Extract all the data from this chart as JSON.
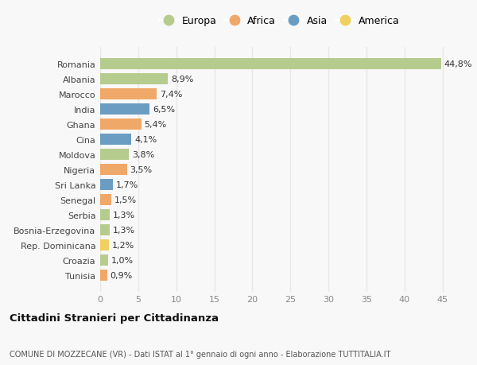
{
  "categories": [
    "Romania",
    "Albania",
    "Marocco",
    "India",
    "Ghana",
    "Cina",
    "Moldova",
    "Nigeria",
    "Sri Lanka",
    "Senegal",
    "Serbia",
    "Bosnia-Erzegovina",
    "Rep. Dominicana",
    "Croazia",
    "Tunisia"
  ],
  "values": [
    44.8,
    8.9,
    7.4,
    6.5,
    5.4,
    4.1,
    3.8,
    3.5,
    1.7,
    1.5,
    1.3,
    1.3,
    1.2,
    1.0,
    0.9
  ],
  "labels": [
    "44,8%",
    "8,9%",
    "7,4%",
    "6,5%",
    "5,4%",
    "4,1%",
    "3,8%",
    "3,5%",
    "1,7%",
    "1,5%",
    "1,3%",
    "1,3%",
    "1,2%",
    "1,0%",
    "0,9%"
  ],
  "continents": [
    "Europa",
    "Europa",
    "Africa",
    "Asia",
    "Africa",
    "Asia",
    "Europa",
    "Africa",
    "Asia",
    "Africa",
    "Europa",
    "Europa",
    "America",
    "Europa",
    "Africa"
  ],
  "continent_colors": {
    "Europa": "#b5cc8e",
    "Africa": "#f0a868",
    "Asia": "#6b9dc2",
    "America": "#f0d060"
  },
  "legend_order": [
    "Europa",
    "Africa",
    "Asia",
    "America"
  ],
  "title": "Cittadini Stranieri per Cittadinanza",
  "subtitle": "COMUNE DI MOZZECANE (VR) - Dati ISTAT al 1° gennaio di ogni anno - Elaborazione TUTTITALIA.IT",
  "xlim": [
    0,
    47
  ],
  "xticks": [
    0,
    5,
    10,
    15,
    20,
    25,
    30,
    35,
    40,
    45
  ],
  "background_color": "#f8f8f8",
  "grid_color": "#e8e8e8",
  "bar_height": 0.72,
  "label_fontsize": 8.0,
  "ytick_fontsize": 8.0,
  "xtick_fontsize": 8.0
}
